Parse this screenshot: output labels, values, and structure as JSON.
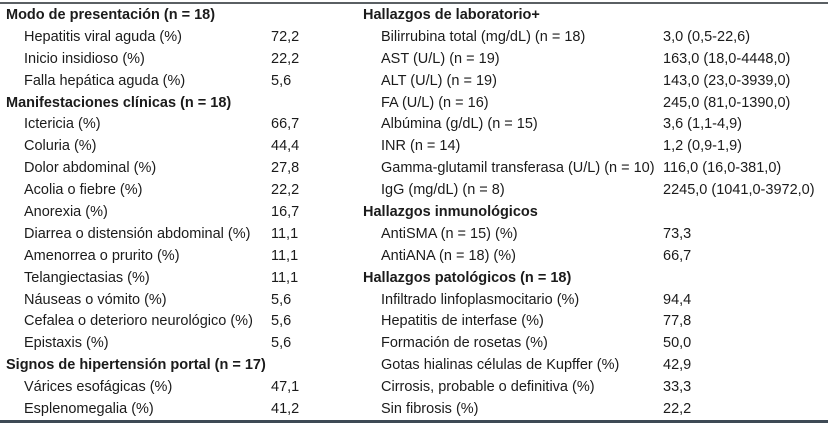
{
  "colors": {
    "background": "#ffffff",
    "text": "#1b1b1b",
    "rule_top": "#5a5f63",
    "rule_bottom": "#3e4a55"
  },
  "table": {
    "left_rows": [
      {
        "label": "Modo de presentación (n = 18)",
        "value": "",
        "header": true
      },
      {
        "label": "Hepatitis viral aguda (%)",
        "value": "72,2"
      },
      {
        "label": "Inicio insidioso (%)",
        "value": "22,2"
      },
      {
        "label": "Falla hepática aguda (%)",
        "value": "5,6"
      },
      {
        "label": "Manifestaciones clínicas (n = 18)",
        "value": "",
        "header": true
      },
      {
        "label": "Ictericia (%)",
        "value": "66,7"
      },
      {
        "label": "Coluria (%)",
        "value": "44,4"
      },
      {
        "label": "Dolor abdominal (%)",
        "value": "27,8"
      },
      {
        "label": "Acolia o fiebre (%)",
        "value": "22,2"
      },
      {
        "label": "Anorexia (%)",
        "value": "16,7"
      },
      {
        "label": "Diarrea o distensión abdominal (%)",
        "value": "11,1"
      },
      {
        "label": "Amenorrea o prurito (%)",
        "value": "11,1"
      },
      {
        "label": "Telangiectasias (%)",
        "value": "11,1"
      },
      {
        "label": "Náuseas o vómito (%)",
        "value": "5,6"
      },
      {
        "label": "Cefalea o deterioro neurológico (%)",
        "value": "5,6"
      },
      {
        "label": "Epistaxis (%)",
        "value": "5,6"
      },
      {
        "label": "Signos de hipertensión portal (n = 17)",
        "value": "",
        "header": true
      },
      {
        "label": "Várices esofágicas (%)",
        "value": "47,1"
      },
      {
        "label": "Esplenomegalia (%)",
        "value": "41,2"
      }
    ],
    "right_rows": [
      {
        "label": "Hallazgos de laboratorio+",
        "value": "",
        "header": true
      },
      {
        "label": "Bilirrubina total (mg/dL) (n = 18)",
        "value": "3,0 (0,5-22,6)"
      },
      {
        "label": "AST (U/L) (n = 19)",
        "value": "163,0 (18,0-4448,0)"
      },
      {
        "label": "ALT (U/L) (n = 19)",
        "value": "143,0 (23,0-3939,0)"
      },
      {
        "label": "FA (U/L) (n = 16)",
        "value": "245,0 (81,0-1390,0)"
      },
      {
        "label": "Albúmina (g/dL) (n = 15)",
        "value": "3,6 (1,1-4,9)"
      },
      {
        "label": "INR (n = 14)",
        "value": "1,2 (0,9-1,9)"
      },
      {
        "label": "Gamma-glutamil transferasa (U/L) (n = 10)",
        "value": "116,0 (16,0-381,0)"
      },
      {
        "label": "IgG (mg/dL) (n = 8)",
        "value": "2245,0 (1041,0-3972,0)"
      },
      {
        "label": "Hallazgos inmunológicos",
        "value": "",
        "header": true
      },
      {
        "label": "AntiSMA (n = 15) (%)",
        "value": "73,3"
      },
      {
        "label": "AntiANA (n = 18) (%)",
        "value": "66,7"
      },
      {
        "label": "Hallazgos patológicos (n = 18)",
        "value": "",
        "header": true
      },
      {
        "label": "Infiltrado linfoplasmocitario (%)",
        "value": "94,4"
      },
      {
        "label": "Hepatitis de interfase (%)",
        "value": "77,8"
      },
      {
        "label": "Formación de rosetas (%)",
        "value": "50,0"
      },
      {
        "label": "Gotas hialinas células de Kupffer (%)",
        "value": "42,9"
      },
      {
        "label": "Cirrosis, probable o definitiva (%)",
        "value": "33,3"
      },
      {
        "label": "Sin fibrosis (%)",
        "value": "22,2"
      }
    ]
  }
}
